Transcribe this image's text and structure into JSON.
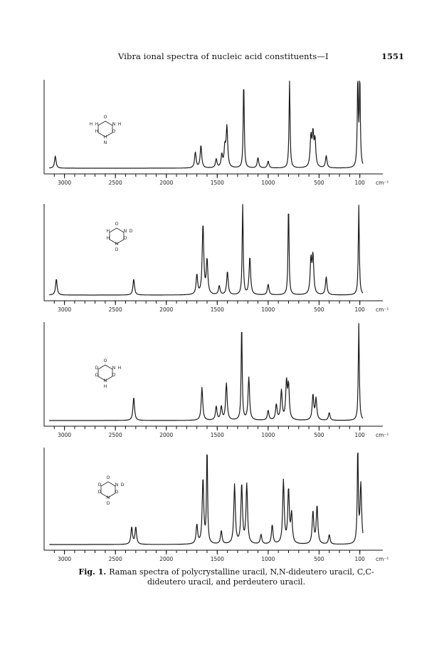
{
  "page": {
    "running_title": "Vibra ional spectra of nucleic acid constituents—I",
    "page_number": "1551",
    "caption_label": "Fig. 1.",
    "caption_text": "Raman spectra of polycrystalline uracil, N,N-dideutero uracil, C,C-dideutero uracil, and perdeutero uracil."
  },
  "chart_data": [
    {
      "type": "line",
      "xlabel": "cm⁻¹",
      "xlim": [
        3200,
        0
      ],
      "x_ticks": [
        3000,
        2500,
        2000,
        1500,
        1000,
        500,
        100
      ],
      "x_tick_labels": [
        "3000",
        "2500",
        "2000",
        "1500",
        "1000",
        "500",
        "100"
      ],
      "axis_unit": "cm⁻¹",
      "molecule_labels": [
        "O",
        "H",
        "N",
        "H",
        "H",
        "O",
        "H",
        "N",
        "H"
      ],
      "y_relative": true,
      "peaks": [
        {
          "x": 3090,
          "y": 0.14
        },
        {
          "x": 1715,
          "y": 0.18
        },
        {
          "x": 1660,
          "y": 0.26
        },
        {
          "x": 1510,
          "y": 0.1
        },
        {
          "x": 1455,
          "y": 0.14
        },
        {
          "x": 1425,
          "y": 0.22
        },
        {
          "x": 1405,
          "y": 0.46
        },
        {
          "x": 1240,
          "y": 1.0
        },
        {
          "x": 1100,
          "y": 0.12
        },
        {
          "x": 1000,
          "y": 0.08
        },
        {
          "x": 790,
          "y": 1.0
        },
        {
          "x": 580,
          "y": 0.34
        },
        {
          "x": 560,
          "y": 0.36
        },
        {
          "x": 540,
          "y": 0.3
        },
        {
          "x": 430,
          "y": 0.14
        },
        {
          "x": 120,
          "y": 1.0
        },
        {
          "x": 100,
          "y": 1.0
        }
      ]
    },
    {
      "type": "line",
      "xlabel": "cm⁻¹",
      "xlim": [
        3200,
        0
      ],
      "x_ticks": [
        3000,
        2500,
        2000,
        1500,
        1000,
        500,
        100
      ],
      "x_tick_labels": [
        "3000",
        "2500",
        "2000",
        "1500",
        "1000",
        "500",
        "100"
      ],
      "axis_unit": "cm⁻¹",
      "molecule_labels": [
        "O",
        "H",
        "N",
        "D",
        "H",
        "O",
        "N",
        "D"
      ],
      "y_relative": true,
      "peaks": [
        {
          "x": 3080,
          "y": 0.18
        },
        {
          "x": 2320,
          "y": 0.18
        },
        {
          "x": 1700,
          "y": 0.22
        },
        {
          "x": 1640,
          "y": 0.78
        },
        {
          "x": 1600,
          "y": 0.38
        },
        {
          "x": 1480,
          "y": 0.1
        },
        {
          "x": 1400,
          "y": 0.26
        },
        {
          "x": 1250,
          "y": 1.0
        },
        {
          "x": 1180,
          "y": 0.42
        },
        {
          "x": 1000,
          "y": 0.12
        },
        {
          "x": 800,
          "y": 1.0
        },
        {
          "x": 580,
          "y": 0.38
        },
        {
          "x": 560,
          "y": 0.42
        },
        {
          "x": 430,
          "y": 0.2
        },
        {
          "x": 110,
          "y": 1.0
        }
      ]
    },
    {
      "type": "line",
      "xlabel": "cm⁻¹",
      "xlim": [
        3200,
        0
      ],
      "x_ticks": [
        3000,
        2500,
        2000,
        1500,
        1000,
        500,
        100
      ],
      "x_tick_labels": [
        "3000",
        "2500",
        "2000",
        "1500",
        "1000",
        "500",
        "100"
      ],
      "axis_unit": "cm⁻¹",
      "molecule_labels": [
        "O",
        "D",
        "N",
        "H",
        "D",
        "O",
        "N",
        "H"
      ],
      "y_relative": true,
      "peaks": [
        {
          "x": 2320,
          "y": 0.24
        },
        {
          "x": 1650,
          "y": 0.34
        },
        {
          "x": 1510,
          "y": 0.14
        },
        {
          "x": 1460,
          "y": 0.14
        },
        {
          "x": 1410,
          "y": 0.38
        },
        {
          "x": 1260,
          "y": 1.0
        },
        {
          "x": 1190,
          "y": 0.44
        },
        {
          "x": 1000,
          "y": 0.1
        },
        {
          "x": 920,
          "y": 0.16
        },
        {
          "x": 870,
          "y": 0.3
        },
        {
          "x": 820,
          "y": 0.38
        },
        {
          "x": 800,
          "y": 0.34
        },
        {
          "x": 560,
          "y": 0.26
        },
        {
          "x": 530,
          "y": 0.22
        },
        {
          "x": 400,
          "y": 0.08
        },
        {
          "x": 110,
          "y": 1.0
        }
      ]
    },
    {
      "type": "line",
      "xlabel": "cm⁻¹",
      "xlim": [
        3200,
        0
      ],
      "x_ticks": [
        3000,
        2500,
        2000,
        1500,
        1000,
        500,
        100
      ],
      "x_tick_labels": [
        "3000",
        "2500",
        "2000",
        "1500",
        "1000",
        "500",
        "100"
      ],
      "axis_unit": "cm⁻¹",
      "molecule_labels": [
        "O",
        "D",
        "N",
        "D",
        "D",
        "O",
        "N",
        "D"
      ],
      "y_relative": true,
      "peaks": [
        {
          "x": 2340,
          "y": 0.18
        },
        {
          "x": 2300,
          "y": 0.18
        },
        {
          "x": 1700,
          "y": 0.2
        },
        {
          "x": 1640,
          "y": 0.68
        },
        {
          "x": 1600,
          "y": 1.0
        },
        {
          "x": 1460,
          "y": 0.14
        },
        {
          "x": 1330,
          "y": 0.62
        },
        {
          "x": 1260,
          "y": 0.62
        },
        {
          "x": 1210,
          "y": 0.62
        },
        {
          "x": 1070,
          "y": 0.1
        },
        {
          "x": 960,
          "y": 0.2
        },
        {
          "x": 850,
          "y": 0.66
        },
        {
          "x": 800,
          "y": 0.56
        },
        {
          "x": 770,
          "y": 0.3
        },
        {
          "x": 560,
          "y": 0.34
        },
        {
          "x": 520,
          "y": 0.4
        },
        {
          "x": 400,
          "y": 0.1
        },
        {
          "x": 120,
          "y": 1.0
        },
        {
          "x": 90,
          "y": 0.62
        }
      ]
    }
  ]
}
